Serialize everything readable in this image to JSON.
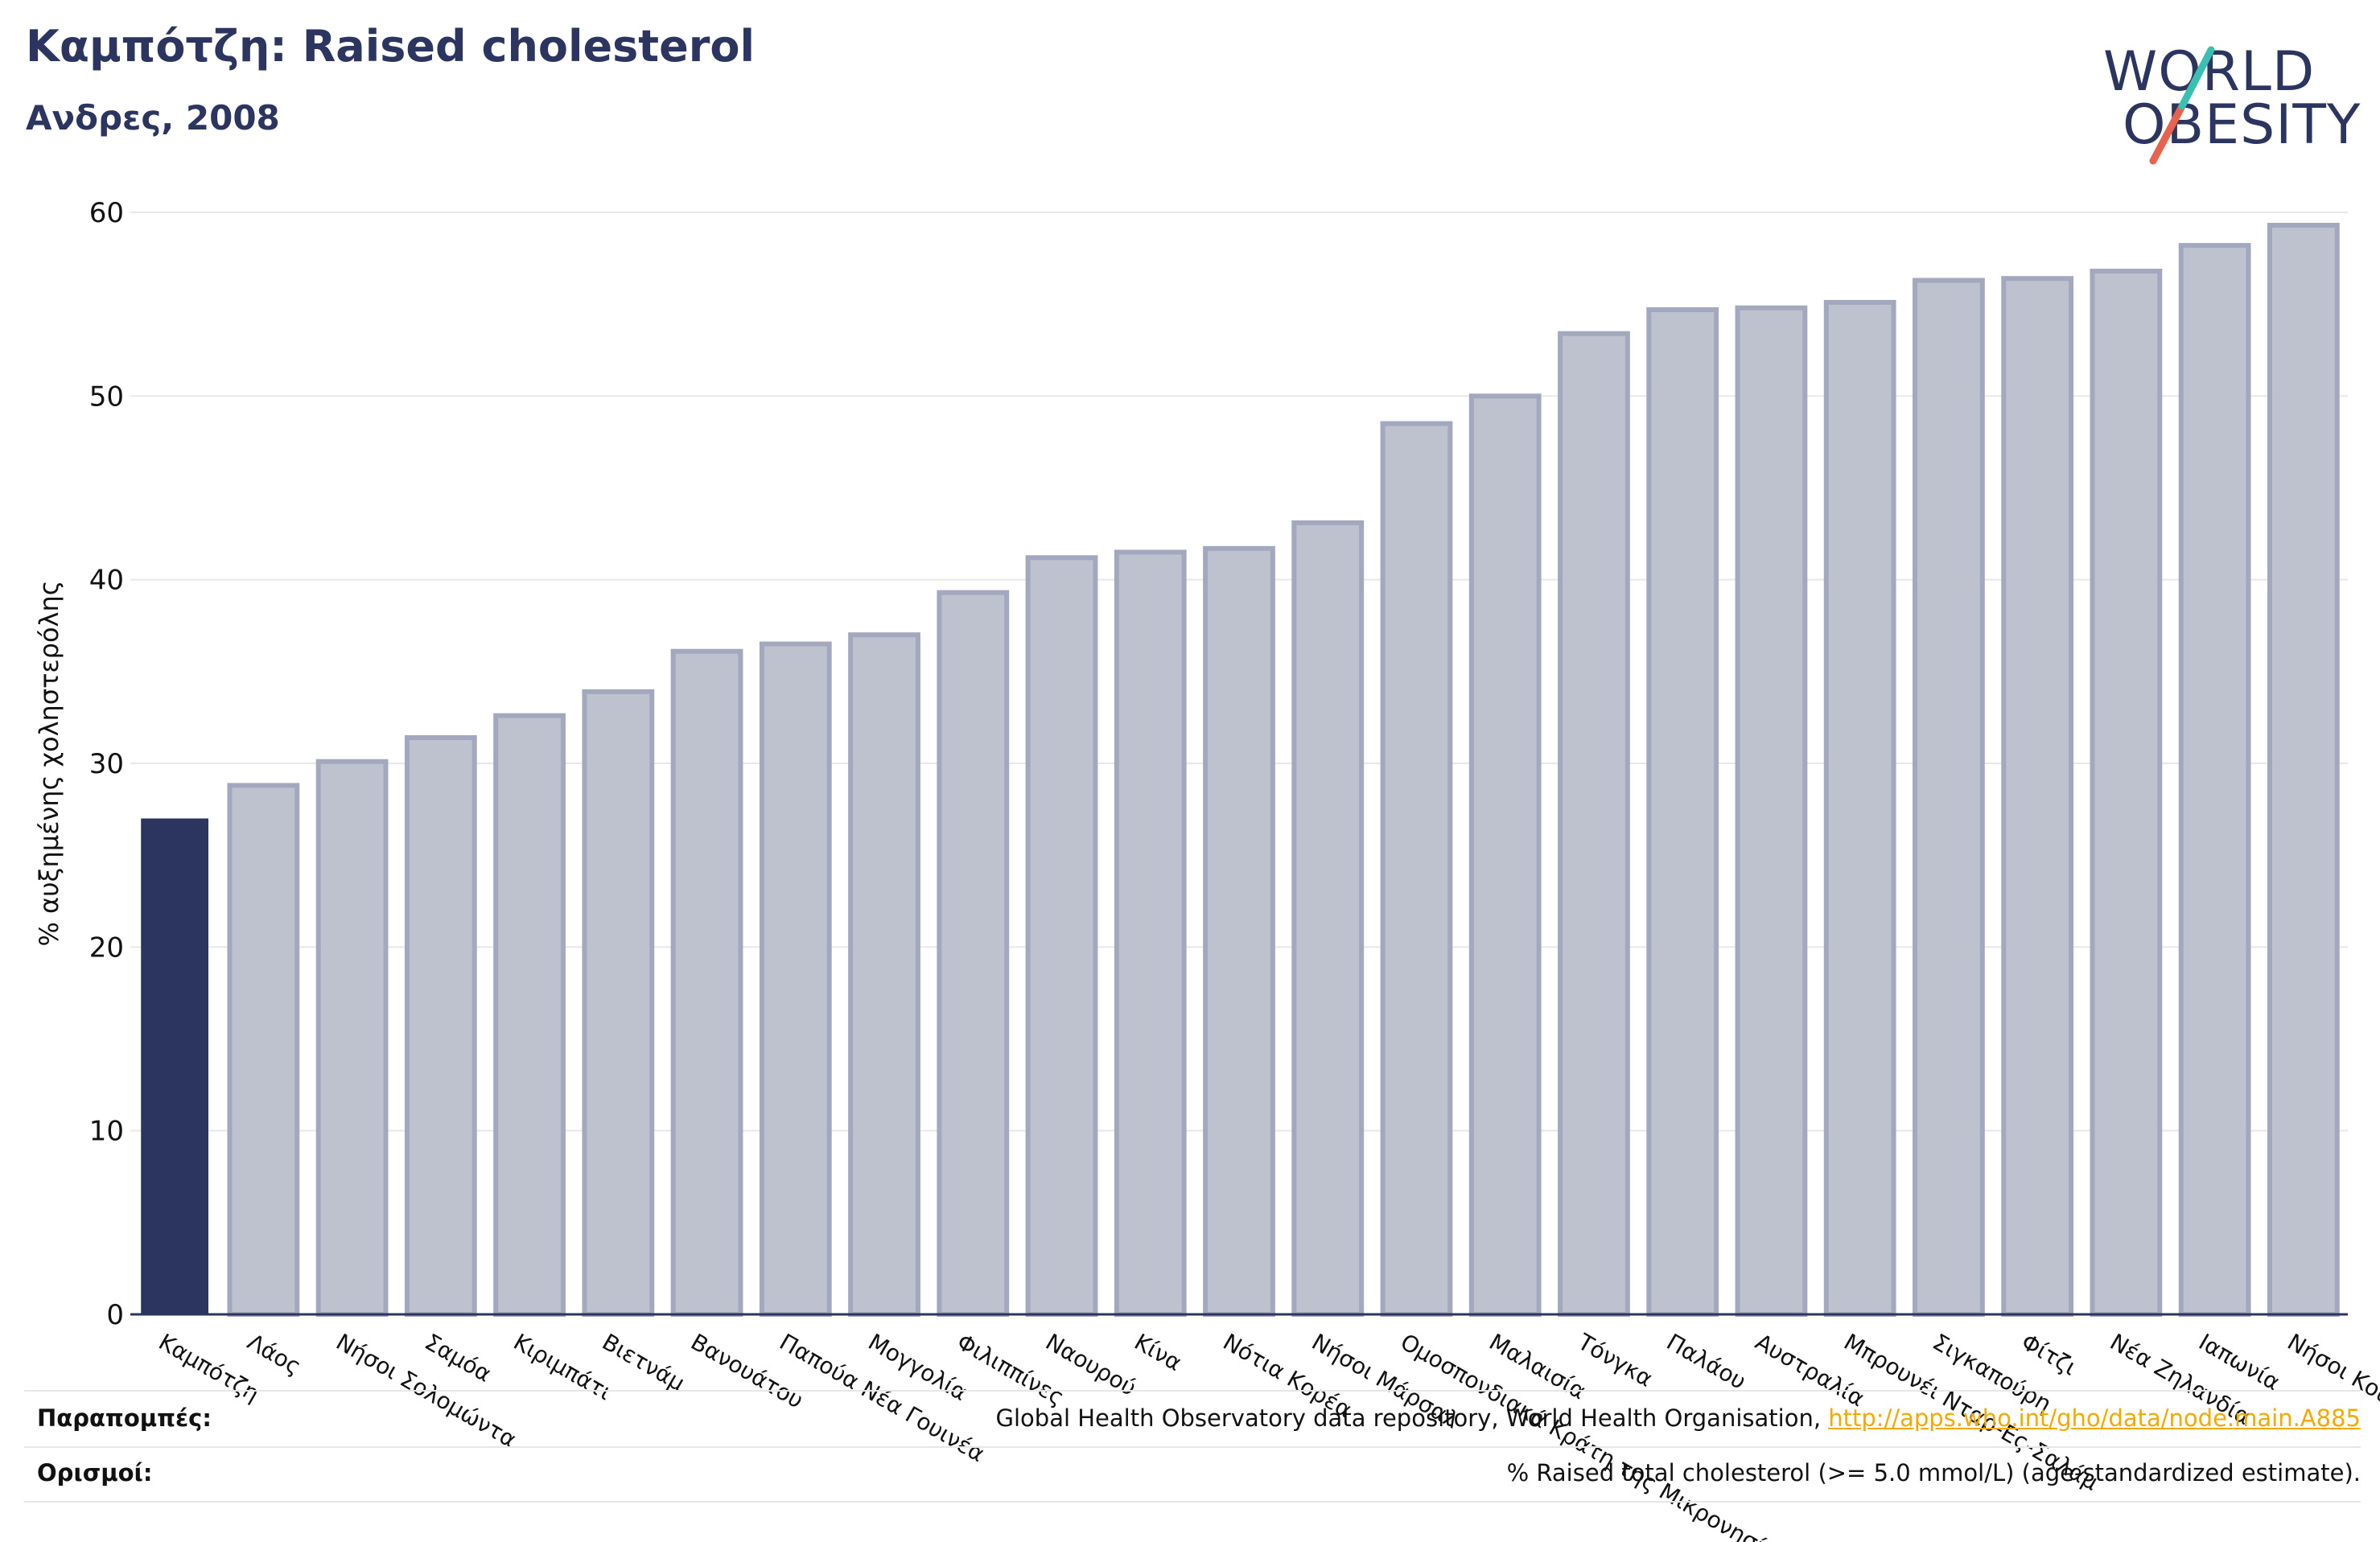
{
  "header": {
    "title": "Καμπότζη: Raised cholesterol",
    "subtitle": "Ανδρες, 2008"
  },
  "logo": {
    "line1": "WORLD",
    "line2": "OBESITY",
    "colors": {
      "text": "#2b355f",
      "slash_top": "#3bbfb2",
      "slash_bottom": "#e8634f"
    }
  },
  "chart_data": {
    "type": "bar",
    "title": "Καμπότζη: Raised cholesterol",
    "subtitle": "Ανδρες, 2008",
    "xlabel": "",
    "ylabel": "% αυξημένης χοληστερόλης",
    "ylim": [
      0,
      60
    ],
    "yticks": [
      0,
      10,
      20,
      30,
      40,
      50,
      60
    ],
    "grid": true,
    "highlight_index": 0,
    "colors": {
      "highlight": "#2b355f",
      "bar_fill": "#bec1ce",
      "bar_stroke": "#a3a8be",
      "grid": "#e8e8e8",
      "baseline": "#2b355f"
    },
    "categories": [
      "Καμπότζη",
      "Λάος",
      "Νήσοι Σολομώντα",
      "Σαμόα",
      "Κιριμπάτι",
      "Βιετνάμ",
      "Βανουάτου",
      "Παπούα Νέα Γουινέα",
      "Μογγολία",
      "Φιλιππίνες",
      "Ναουρού",
      "Κίνα",
      "Νότια Κορέα",
      "Νήσοι Μάρσαλ",
      "Ομοσπονδιακά Κράτη της Μικρονησίας",
      "Μαλαισία",
      "Τόνγκα",
      "Παλάου",
      "Αυστραλία",
      "Μπρουνέι Νταρ-Ες-Σαλάμ",
      "Σιγκαπούρη",
      "Φίτζι",
      "Νέα Ζηλανδία",
      "Ιαπωνία",
      "Νήσοι Κουκ"
    ],
    "values": [
      27.0,
      28.8,
      30.1,
      31.4,
      32.6,
      33.9,
      36.1,
      36.5,
      37.0,
      39.3,
      41.2,
      41.5,
      41.7,
      43.1,
      48.5,
      50.0,
      53.4,
      54.7,
      54.8,
      55.1,
      56.3,
      56.4,
      56.8,
      58.2,
      59.3
    ]
  },
  "footer": {
    "refs_label": "Παραπομπές:",
    "refs_text": "Global Health Observatory data repository, World Health Organisation, ",
    "refs_link": "http://apps.who.int/gho/data/node.main.A885",
    "defs_label": "Ορισμοί:",
    "defs_text": "% Raised total cholesterol (>= 5.0 mmol/L) (age-standardized estimate)."
  }
}
